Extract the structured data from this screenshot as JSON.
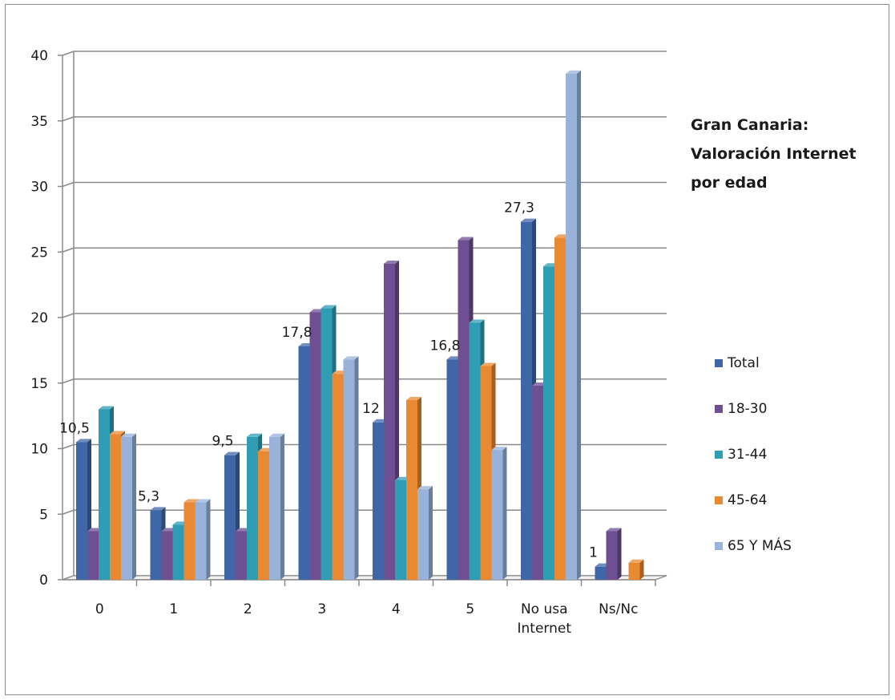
{
  "chart_data": {
    "type": "bar",
    "title_lines": [
      "Gran Canaria:",
      "Valoración Internet",
      "por edad"
    ],
    "xlabel": "",
    "ylabel": "",
    "ylim": [
      0,
      40
    ],
    "yticks": [
      0,
      5,
      10,
      15,
      20,
      25,
      30,
      35,
      40
    ],
    "categories": [
      "0",
      "1",
      "2",
      "3",
      "4",
      "5",
      "No usa\nInternet",
      "Ns/Nc"
    ],
    "series": [
      {
        "name": "Total",
        "color": "#3f67a8",
        "values": [
          10.5,
          5.3,
          9.5,
          17.8,
          12,
          16.8,
          27.3,
          1
        ]
      },
      {
        "name": "18-30",
        "color": "#6d4f92",
        "values": [
          3.7,
          3.7,
          3.7,
          20.4,
          24.1,
          25.9,
          14.8,
          3.7
        ]
      },
      {
        "name": "31-44",
        "color": "#2f9eb5",
        "values": [
          13,
          4.2,
          10.9,
          20.7,
          7.6,
          19.6,
          23.9,
          0
        ]
      },
      {
        "name": "45-64",
        "color": "#e98a32",
        "values": [
          11.1,
          5.9,
          9.8,
          15.7,
          13.7,
          16.3,
          26.1,
          1.3
        ]
      },
      {
        "name": "65 Y MÁS",
        "color": "#98b2da",
        "values": [
          10.9,
          5.9,
          10.9,
          16.8,
          6.9,
          9.9,
          38.6,
          0
        ]
      }
    ],
    "data_labels": [
      {
        "series": "Total",
        "category_index": 0,
        "text": "10,5"
      },
      {
        "series": "Total",
        "category_index": 1,
        "text": "5,3"
      },
      {
        "series": "Total",
        "category_index": 2,
        "text": "9,5"
      },
      {
        "series": "Total",
        "category_index": 3,
        "text": "17,8"
      },
      {
        "series": "Total",
        "category_index": 4,
        "text": "12"
      },
      {
        "series": "Total",
        "category_index": 5,
        "text": "16,8"
      },
      {
        "series": "Total",
        "category_index": 6,
        "text": "27,3"
      },
      {
        "series": "Total",
        "category_index": 7,
        "text": "1"
      }
    ],
    "grid": true,
    "legend_position": "right",
    "style": "3d-clustered-column"
  }
}
